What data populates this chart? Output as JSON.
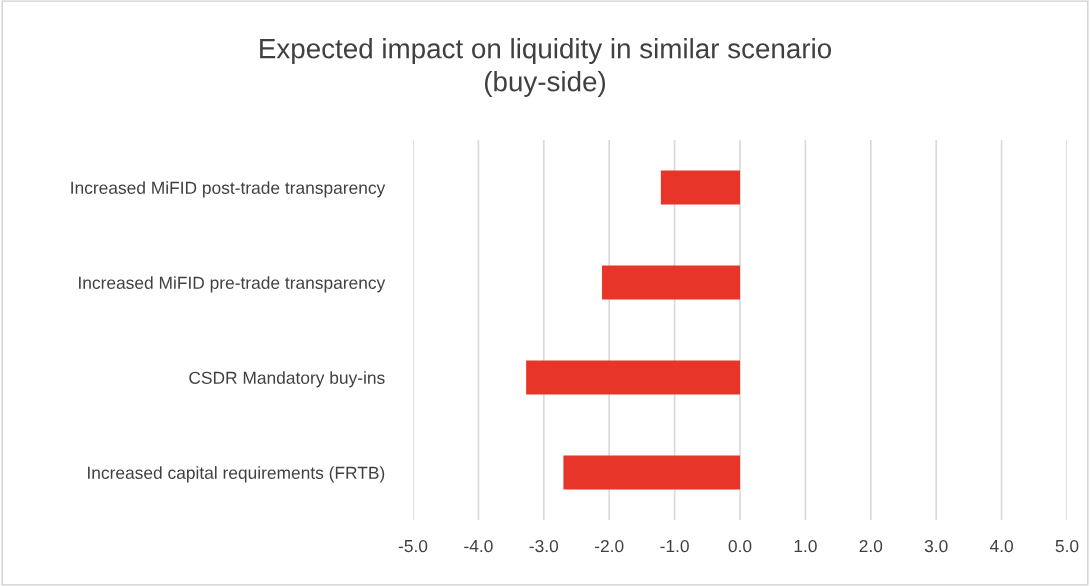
{
  "chart_data": {
    "type": "bar",
    "orientation": "horizontal",
    "title": "Expected impact on liquidity in similar scenario\n(buy-side)",
    "categories": [
      "Increased MiFID post-trade transparency",
      "Increased MiFID pre-trade transparency",
      "CSDR Mandatory buy-ins",
      "Increased capital requirements (FRTB)"
    ],
    "values": [
      -1.21,
      -2.11,
      -3.27,
      -2.7
    ],
    "color": "#e8352a",
    "xlim": [
      -5,
      5
    ],
    "xticks": [
      {
        "value": -5,
        "label": "-5.0"
      },
      {
        "value": -4,
        "label": "-4.0"
      },
      {
        "value": -3,
        "label": "-3.0"
      },
      {
        "value": -2,
        "label": "-2.0"
      },
      {
        "value": -1,
        "label": "-1.0"
      },
      {
        "value": 0,
        "label": "0.0"
      },
      {
        "value": 1,
        "label": "1.0"
      },
      {
        "value": 2,
        "label": "2.0"
      },
      {
        "value": 3,
        "label": "3.0"
      },
      {
        "value": 4,
        "label": "4.0"
      },
      {
        "value": 5,
        "label": "5.0"
      }
    ],
    "grid": "x"
  }
}
